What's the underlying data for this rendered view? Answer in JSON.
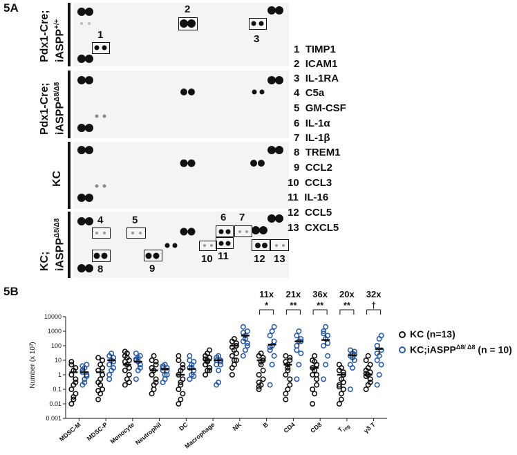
{
  "panel_a": {
    "label": "5A",
    "rows": [
      {
        "label_main": "Pdx1-Cre;",
        "label_line2": "iASPP",
        "label_sup": "+/+"
      },
      {
        "label_main": "Pdx1-Cre;",
        "label_line2": "iASPP",
        "label_sup": "Δ8/Δ8"
      },
      {
        "label_main": "KC",
        "label_line2": "",
        "label_sup": ""
      },
      {
        "label_main": "KC;",
        "label_line2": "iASPP",
        "label_sup": "Δ8/Δ8"
      }
    ],
    "spot_numbers": [
      "1",
      "2",
      "3",
      "4",
      "5",
      "6",
      "7",
      "8",
      "9",
      "10",
      "11",
      "12",
      "13"
    ],
    "legend": [
      {
        "num": "1",
        "name": "TIMP1"
      },
      {
        "num": "2",
        "name": "ICAM1"
      },
      {
        "num": "3",
        "name": "IL-1RA"
      },
      {
        "num": "4",
        "name": "C5a"
      },
      {
        "num": "5",
        "name": "GM-CSF"
      },
      {
        "num": "6",
        "name": "IL-1α"
      },
      {
        "num": "7",
        "name": "IL-1β"
      },
      {
        "num": "8",
        "name": "TREM1"
      },
      {
        "num": "9",
        "name": "CCL2"
      },
      {
        "num": "10",
        "name": "CCL3"
      },
      {
        "num": "11",
        "name": "IL-16"
      },
      {
        "num": "12",
        "name": "CCL5"
      },
      {
        "num": "13",
        "name": "CXCL5"
      }
    ]
  },
  "chart_data": {
    "panel_label": "5B",
    "type": "scatter",
    "ylabel": "Number (x 10³)",
    "yscale": "log",
    "ylim": [
      0.001,
      10000
    ],
    "yticks": [
      "10000",
      "1000",
      "100",
      "10",
      "1",
      "0.1",
      "0.01",
      "0.001"
    ],
    "categories": [
      "MDSC-M",
      "MDSC-P",
      "Monocyte",
      "Neutrophil",
      "DC",
      "Macrophage",
      "NK",
      "B",
      "CD4",
      "CD8",
      "T_reg",
      "γδ T"
    ],
    "category_labels": [
      "MDSC-M",
      "MDSC-P",
      "Monocyte",
      "Neutrophil",
      "DC",
      "Macrophage",
      "NK",
      "B",
      "CD4",
      "CD8",
      "T",
      "γδ T"
    ],
    "treg_subscript": "reg",
    "series": [
      {
        "name": "KC (n=13)",
        "color": "#111111",
        "values": [
          [
            0.01,
            0.02,
            0.05,
            0.1,
            0.2,
            0.5,
            1,
            2,
            3,
            5,
            0.03,
            0.3,
            8
          ],
          [
            0.02,
            0.05,
            0.1,
            0.3,
            0.5,
            1,
            2,
            5,
            10,
            15,
            0.2,
            3,
            0.08
          ],
          [
            0.2,
            0.5,
            1,
            2,
            5,
            10,
            20,
            30,
            3,
            8,
            15,
            0.3,
            40
          ],
          [
            0.05,
            0.1,
            0.3,
            1,
            2,
            5,
            10,
            20,
            0.5,
            3,
            0.2,
            8,
            1
          ],
          [
            0.01,
            0.02,
            0.05,
            0.1,
            0.3,
            0.5,
            1,
            2,
            5,
            10,
            0.2,
            3,
            20
          ],
          [
            1,
            2,
            3,
            5,
            10,
            15,
            20,
            30,
            50,
            5,
            8,
            2,
            12
          ],
          [
            1,
            5,
            10,
            20,
            50,
            100,
            200,
            300,
            30,
            80,
            10,
            150,
            3
          ],
          [
            0.1,
            0.2,
            0.5,
            1,
            5,
            10,
            20,
            30,
            2,
            0.3,
            8,
            15,
            0.15
          ],
          [
            0.02,
            0.1,
            0.5,
            1,
            5,
            10,
            20,
            2,
            0.2,
            8,
            3,
            15,
            0.05
          ],
          [
            0.01,
            0.05,
            0.2,
            1,
            2,
            5,
            10,
            20,
            0.5,
            3,
            8,
            1,
            0.1
          ],
          [
            0.01,
            0.05,
            0.1,
            0.2,
            0.5,
            1,
            2,
            3,
            0.3,
            5,
            0.02,
            1.5,
            0.15
          ],
          [
            0.1,
            0.2,
            0.5,
            0.8,
            1,
            1.5,
            2,
            3,
            5,
            10,
            20,
            0.3,
            1.2
          ]
        ]
      },
      {
        "name": "KC;iASPP",
        "name_sup": "Δ8/ Δ8",
        "name_tail": " (n = 10)",
        "color": "#2a5caa",
        "values": [
          [
            0.2,
            0.5,
            1,
            2,
            3,
            5,
            1.5,
            0.3,
            0.8,
            4
          ],
          [
            1,
            2,
            3,
            5,
            10,
            15,
            20,
            30,
            8,
            0.5
          ],
          [
            0.5,
            2,
            5,
            10,
            15,
            20,
            30,
            8,
            3,
            12
          ],
          [
            0.3,
            1,
            2,
            3,
            5,
            3,
            2,
            0.5,
            1,
            4
          ],
          [
            0.5,
            1,
            2,
            3,
            5,
            8,
            10,
            3,
            0.8,
            20
          ],
          [
            0.2,
            0.3,
            5,
            10,
            20,
            10,
            5,
            2,
            8,
            15
          ],
          [
            20,
            50,
            100,
            200,
            500,
            1000,
            2000,
            300,
            150,
            800
          ],
          [
            0.2,
            5,
            20,
            50,
            100,
            200,
            500,
            1000,
            2000,
            80
          ],
          [
            0.5,
            5,
            30,
            100,
            200,
            300,
            500,
            1000,
            200,
            50
          ],
          [
            0.5,
            5,
            20,
            100,
            300,
            500,
            1000,
            2000,
            150,
            700
          ],
          [
            0.1,
            3,
            10,
            20,
            30,
            40,
            50,
            15,
            25,
            5
          ],
          [
            0.2,
            1,
            5,
            10,
            20,
            50,
            100,
            300,
            500,
            30
          ]
        ]
      }
    ],
    "means": {
      "KC": [
        1.5,
        1.5,
        5,
        2,
        1,
        10,
        100,
        10,
        5,
        3,
        1,
        1
      ],
      "KC;iASPP": [
        1.5,
        10,
        8,
        2.5,
        2.5,
        10,
        500,
        120,
        200,
        250,
        22,
        60
      ]
    },
    "annotations": [
      {
        "category": "B",
        "fold": "11x",
        "sig": "*"
      },
      {
        "category": "CD4",
        "fold": "21x",
        "sig": "**"
      },
      {
        "category": "CD8",
        "fold": "36x",
        "sig": "**"
      },
      {
        "category": "T_reg",
        "fold": "20x",
        "sig": "**"
      },
      {
        "category": "γδ T",
        "fold": "32x",
        "sig": "†"
      }
    ]
  }
}
